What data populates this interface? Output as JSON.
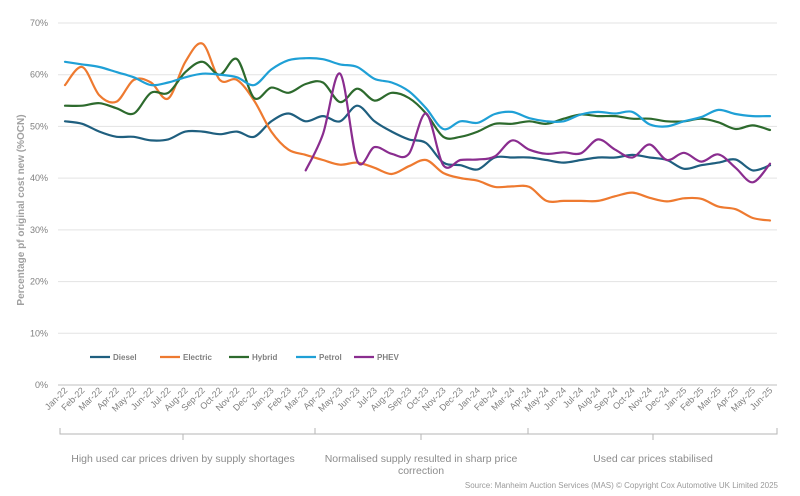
{
  "chart_data": {
    "type": "line",
    "ylabel": "Percentage pf original cost new (%OCN)",
    "ylim": [
      0,
      70
    ],
    "yticks": [
      0,
      10,
      20,
      30,
      40,
      50,
      60,
      70
    ],
    "ytick_labels": [
      "0%",
      "10%",
      "20%",
      "30%",
      "40%",
      "50%",
      "60%",
      "70%"
    ],
    "grid": true,
    "legend": "lower-left",
    "categories": [
      "Jan-22",
      "Feb-22",
      "Mar-22",
      "Apr-22",
      "May-22",
      "Jun-22",
      "Jul-22",
      "Aug-22",
      "Sep-22",
      "Oct-22",
      "Nov-22",
      "Dec-22",
      "Jan-23",
      "Feb-23",
      "Mar-23",
      "Apr-23",
      "May-23",
      "Jun-23",
      "Jul-23",
      "Aug-23",
      "Sep-23",
      "Oct-23",
      "Nov-23",
      "Dec-23",
      "Jan-24",
      "Feb-24",
      "Mar-24",
      "Apr-24",
      "May-24",
      "Jun-24",
      "Jul-24",
      "Aug-24",
      "Sep-24",
      "Oct-24",
      "Nov-24",
      "Dec-24",
      "Jan-25",
      "Feb-25",
      "Mar-25",
      "Apr-25",
      "May-25",
      "Jun-25"
    ],
    "series": [
      {
        "name": "Diesel",
        "color": "#1f5f7f",
        "values": [
          51,
          50.5,
          49,
          48,
          48,
          47.3,
          47.5,
          49,
          49,
          48.5,
          49,
          48,
          51,
          52.5,
          51,
          52,
          51,
          54,
          51,
          49,
          47.5,
          46.8,
          43,
          42.5,
          41.7,
          44,
          44,
          44,
          43.5,
          43,
          43.5,
          44,
          44,
          44.5,
          44,
          43.5,
          41.8,
          42.5,
          43,
          43.6,
          41.5,
          42.5
        ]
      },
      {
        "name": "Electric",
        "color": "#ee7a30",
        "values": [
          58,
          61.5,
          56,
          54.8,
          59,
          58.5,
          55.4,
          62.5,
          66,
          59,
          59,
          55,
          49,
          45.5,
          44.5,
          43.5,
          42.6,
          43,
          42,
          40.8,
          42.3,
          43.5,
          41,
          40,
          39.5,
          38.3,
          38.4,
          38.3,
          35.6,
          35.6,
          35.6,
          35.6,
          36.5,
          37.2,
          36.2,
          35.5,
          36.1,
          36,
          34.5,
          34,
          32.3,
          31.8
        ]
      },
      {
        "name": "Hybrid",
        "color": "#2d6a2d",
        "values": [
          54,
          54,
          54.5,
          53.5,
          52.5,
          56.5,
          56.5,
          60.5,
          62.5,
          60,
          63,
          55.5,
          57.5,
          56.5,
          58.2,
          58.5,
          54.7,
          57.3,
          55,
          56.5,
          55.5,
          52.5,
          48,
          48,
          49,
          50.5,
          50.5,
          51,
          50.5,
          51.5,
          52.3,
          52,
          52,
          51.5,
          51.5,
          51,
          51,
          51.5,
          50.8,
          49.5,
          50.2,
          49.3
        ]
      },
      {
        "name": "Petrol",
        "color": "#1fa0d6",
        "values": [
          62.5,
          62,
          61.5,
          60.5,
          59.5,
          58,
          58.5,
          59.5,
          60.2,
          60,
          59.5,
          58,
          61,
          62.8,
          63.2,
          63,
          62,
          61.5,
          59.2,
          58.5,
          56.8,
          53.5,
          49.5,
          51,
          50.7,
          52.4,
          52.8,
          51.6,
          51,
          51,
          52.3,
          52.8,
          52.5,
          52.8,
          50.4,
          50,
          51,
          51.8,
          53.2,
          52.4,
          52,
          52
        ]
      },
      {
        "name": "PHEV",
        "color": "#8a2d8f",
        "values": [
          null,
          null,
          null,
          null,
          null,
          null,
          null,
          null,
          null,
          null,
          null,
          null,
          null,
          null,
          41.5,
          48.5,
          60.2,
          43.3,
          46,
          44.7,
          44.7,
          52.5,
          42.5,
          43.5,
          43.6,
          44.2,
          47.3,
          45.5,
          44.7,
          45,
          44.8,
          47.5,
          45.5,
          44,
          46.5,
          43.5,
          44.9,
          43.2,
          44.6,
          42,
          39.2,
          42.8
        ]
      }
    ],
    "phases": [
      {
        "label": "High used car prices driven by supply shortages"
      },
      {
        "label_lines": [
          "Normalised supply resulted in sharp price",
          "correction"
        ]
      },
      {
        "label": "Used car prices stabilised"
      }
    ],
    "source": "Source: Manheim Auction Services (MAS)  © Copyright Cox Automotive UK Limited 2025"
  }
}
